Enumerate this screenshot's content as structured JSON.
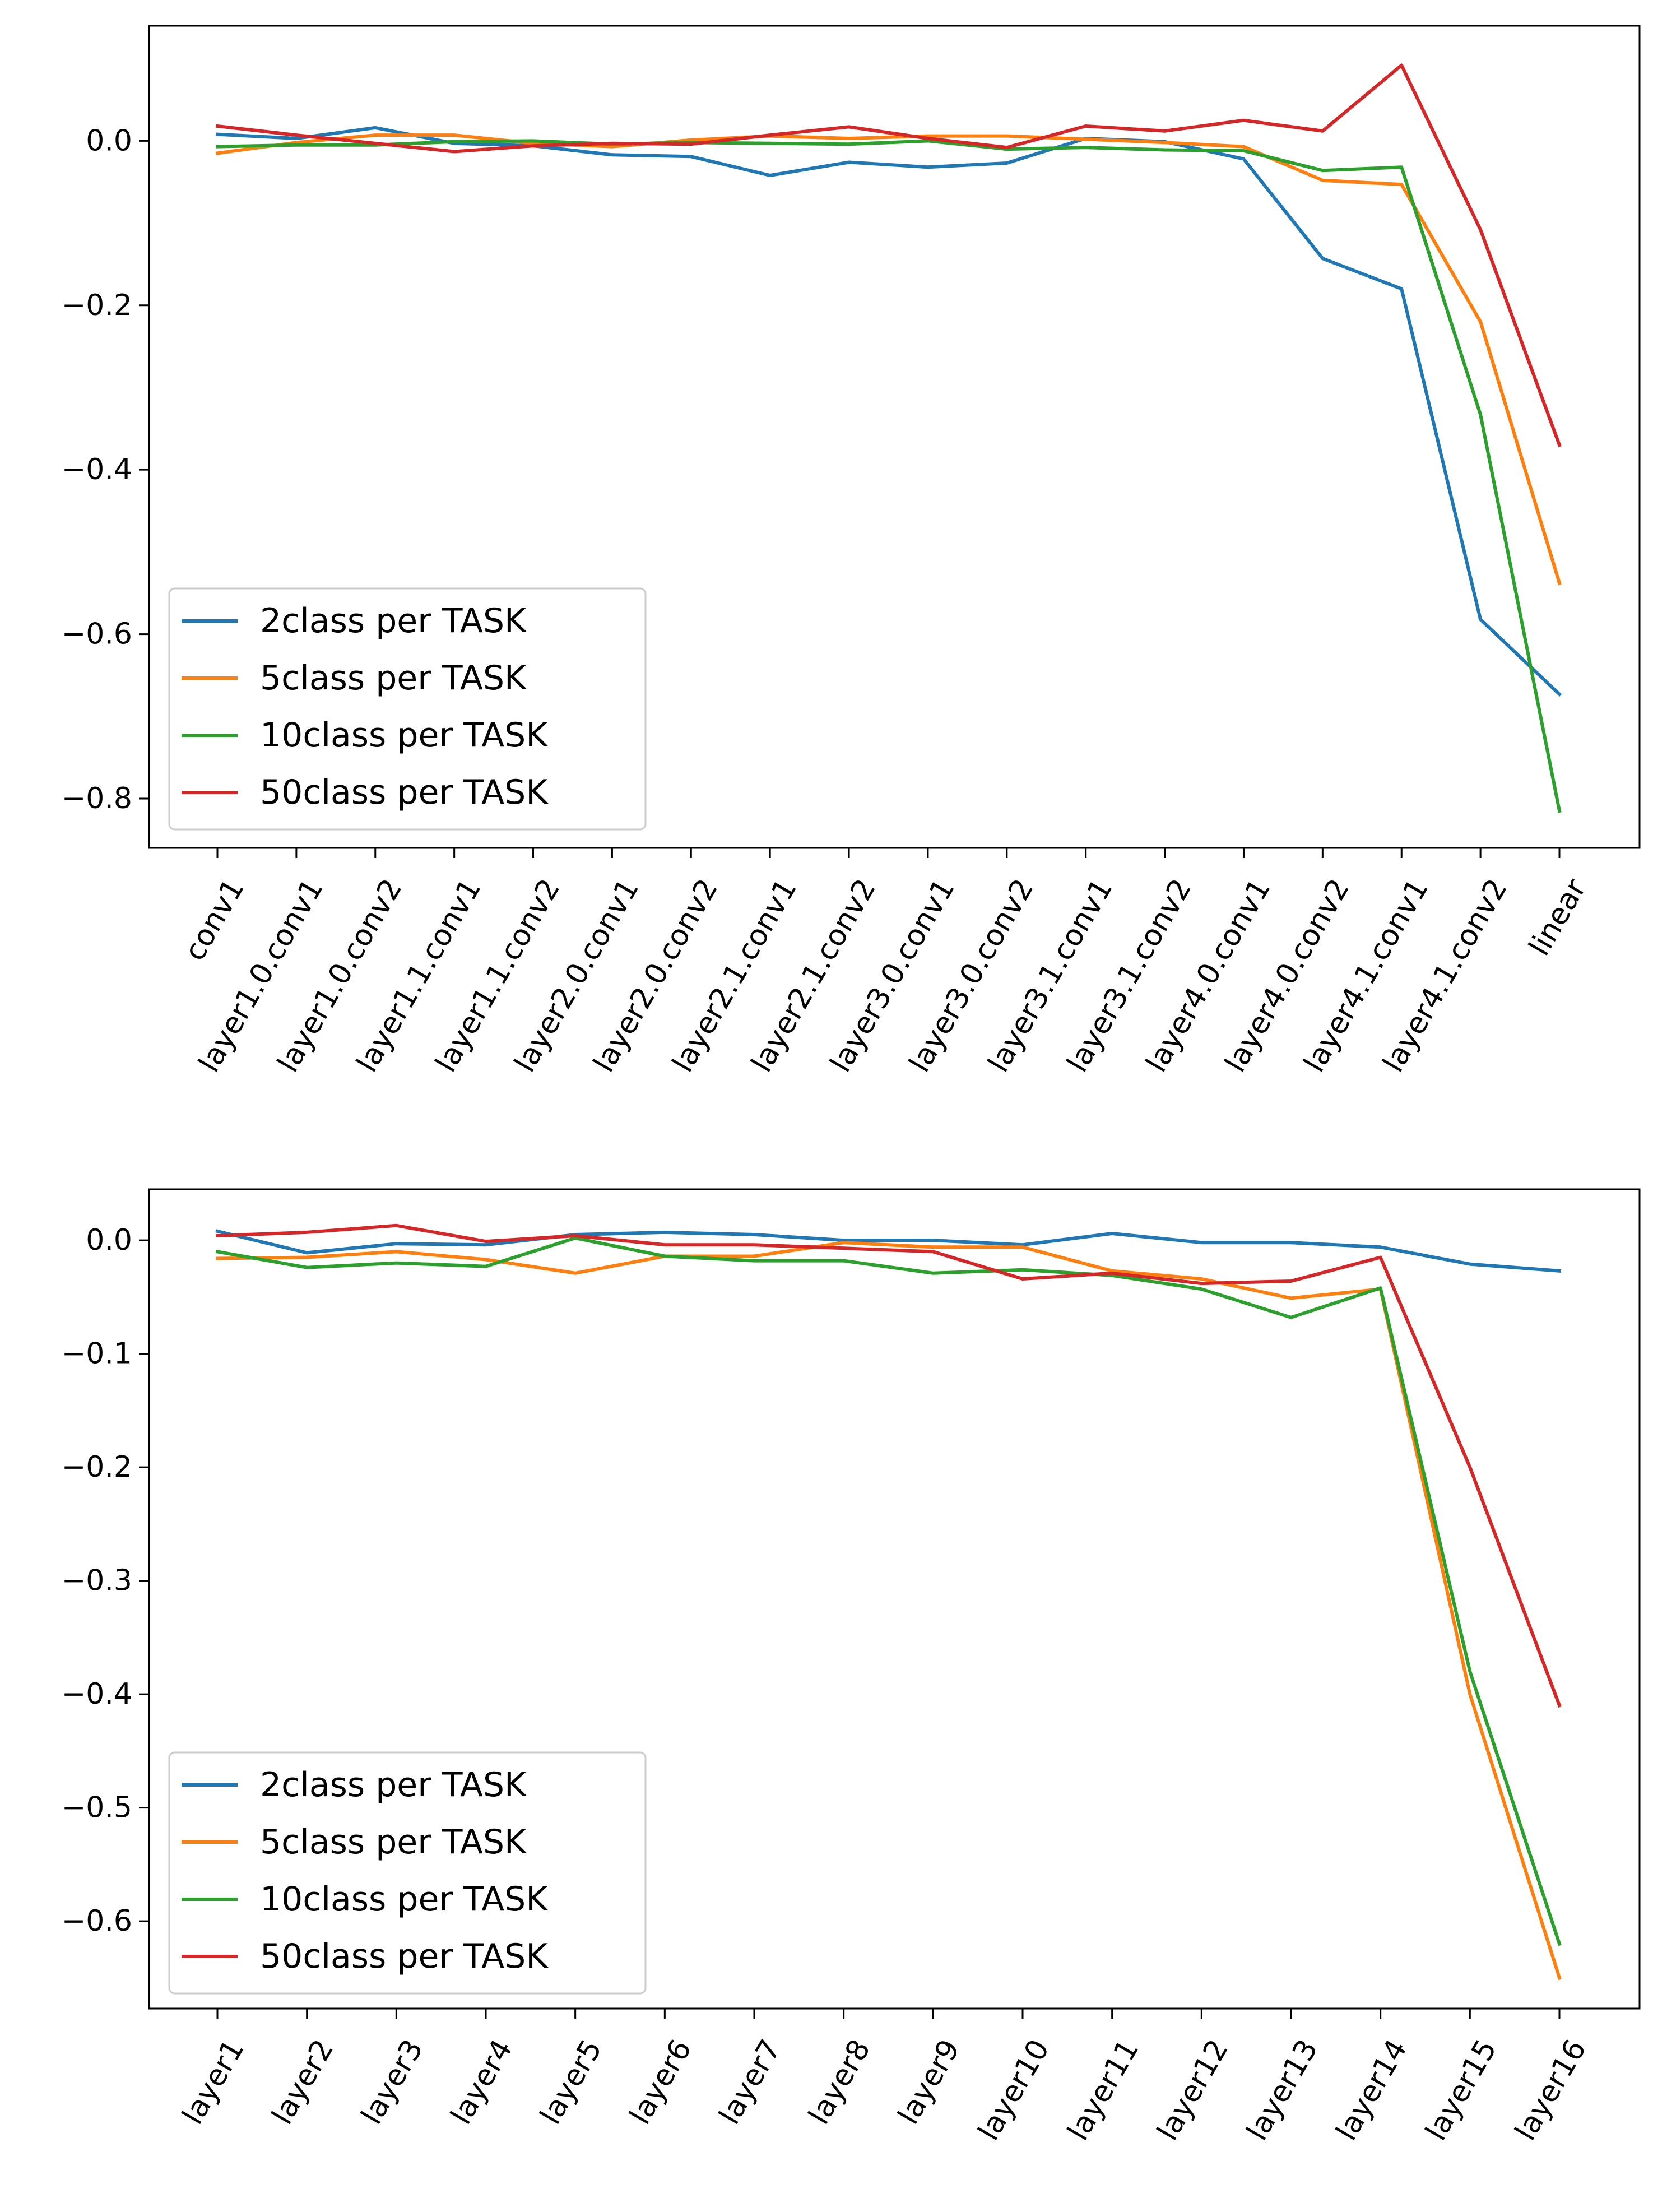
{
  "chart_data": [
    {
      "type": "line",
      "title": "",
      "xlabel": "",
      "ylabel": "",
      "ylim": [
        -0.86,
        0.14
      ],
      "yticks": [
        0.0,
        -0.2,
        -0.4,
        -0.6,
        -0.8
      ],
      "ytick_labels": [
        "0.0",
        "−0.2",
        "−0.4",
        "−0.6",
        "−0.8"
      ],
      "categories": [
        "conv1",
        "layer1.0.conv1",
        "layer1.0.conv2",
        "layer1.1.conv1",
        "layer1.1.conv2",
        "layer2.0.conv1",
        "layer2.0.conv2",
        "layer2.1.conv1",
        "layer2.1.conv2",
        "layer3.0.conv1",
        "layer3.0.conv2",
        "layer3.1.conv1",
        "layer3.1.conv2",
        "layer4.0.conv1",
        "layer4.0.conv2",
        "layer4.1.conv1",
        "layer4.1.conv2",
        "linear"
      ],
      "legend_location": "lower-left",
      "series": [
        {
          "name": "2class per TASK",
          "color": "#1f77b4",
          "values": [
            0.008,
            0.003,
            0.016,
            -0.003,
            -0.006,
            -0.017,
            -0.019,
            -0.042,
            -0.026,
            -0.032,
            -0.027,
            0.003,
            -0.001,
            -0.022,
            -0.143,
            -0.18,
            -0.582,
            -0.673
          ]
        },
        {
          "name": "5class per TASK",
          "color": "#ff7f0e",
          "values": [
            -0.015,
            -0.002,
            0.007,
            0.007,
            -0.003,
            -0.007,
            0.001,
            0.006,
            0.003,
            0.006,
            0.006,
            0.002,
            -0.002,
            -0.007,
            -0.048,
            -0.053,
            -0.22,
            -0.538
          ]
        },
        {
          "name": "10class per TASK",
          "color": "#2ca02c",
          "values": [
            -0.007,
            -0.005,
            -0.005,
            -0.001,
            0.0,
            -0.004,
            -0.002,
            -0.003,
            -0.004,
            0.0,
            -0.01,
            -0.008,
            -0.011,
            -0.012,
            -0.036,
            -0.032,
            -0.333,
            -0.815
          ]
        },
        {
          "name": "50class per TASK",
          "color": "#d62728",
          "values": [
            0.018,
            0.007,
            -0.003,
            -0.013,
            -0.006,
            -0.003,
            -0.004,
            0.007,
            0.017,
            0.003,
            -0.008,
            0.018,
            0.012,
            0.025,
            0.012,
            0.092,
            -0.108,
            -0.37
          ]
        }
      ]
    },
    {
      "type": "line",
      "title": "",
      "xlabel": "",
      "ylabel": "",
      "ylim": [
        -0.677,
        0.045
      ],
      "yticks": [
        0.0,
        -0.1,
        -0.2,
        -0.3,
        -0.4,
        -0.5,
        -0.6
      ],
      "ytick_labels": [
        "0.0",
        "−0.1",
        "−0.2",
        "−0.3",
        "−0.4",
        "−0.5",
        "−0.6"
      ],
      "categories": [
        "layer1",
        "layer2",
        "layer3",
        "layer4",
        "layer5",
        "layer6",
        "layer7",
        "layer8",
        "layer9",
        "layer10",
        "layer11",
        "layer12",
        "layer13",
        "layer14",
        "layer15",
        "layer16"
      ],
      "legend_location": "lower-left",
      "series": [
        {
          "name": "2class per TASK",
          "color": "#1f77b4",
          "values": [
            0.008,
            -0.011,
            -0.003,
            -0.004,
            0.005,
            0.007,
            0.005,
            0.0,
            0.0,
            -0.004,
            0.006,
            -0.002,
            -0.002,
            -0.006,
            -0.021,
            -0.027
          ]
        },
        {
          "name": "5class per TASK",
          "color": "#ff7f0e",
          "values": [
            -0.016,
            -0.015,
            -0.01,
            -0.017,
            -0.029,
            -0.014,
            -0.014,
            -0.002,
            -0.006,
            -0.006,
            -0.027,
            -0.034,
            -0.051,
            -0.043,
            -0.4,
            -0.65
          ]
        },
        {
          "name": "10class per TASK",
          "color": "#2ca02c",
          "values": [
            -0.01,
            -0.024,
            -0.02,
            -0.023,
            0.002,
            -0.014,
            -0.018,
            -0.018,
            -0.029,
            -0.026,
            -0.031,
            -0.043,
            -0.068,
            -0.042,
            -0.38,
            -0.62
          ]
        },
        {
          "name": "50class per TASK",
          "color": "#d62728",
          "values": [
            0.004,
            0.007,
            0.013,
            -0.001,
            0.004,
            -0.004,
            -0.004,
            -0.007,
            -0.01,
            -0.034,
            -0.029,
            -0.038,
            -0.036,
            -0.015,
            -0.2,
            -0.41
          ]
        }
      ]
    }
  ]
}
